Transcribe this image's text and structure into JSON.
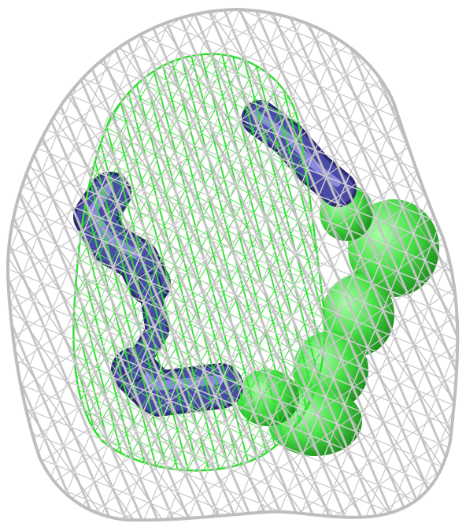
{
  "scene": {
    "background": "#ffffff",
    "outer_mesh_color": "#c4c4c4",
    "outer_mesh_highlight": "#eeeeee",
    "inner_mesh_color": "#33dd33",
    "inner_mesh_highlight": "#88ff88",
    "blue_tube_color": "#4a4aa8",
    "blue_tube_highlight": "#8a8ae0",
    "green_blob_color": "#44dd44",
    "green_blob_highlight": "#aaffaa"
  }
}
